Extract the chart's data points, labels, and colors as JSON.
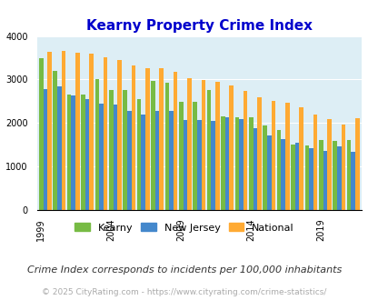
{
  "title": "Kearny Property Crime Index",
  "title_color": "#0000cc",
  "subtitle": "Crime Index corresponds to incidents per 100,000 inhabitants",
  "footer": "© 2025 CityRating.com - https://www.cityrating.com/crime-statistics/",
  "years": [
    1999,
    2000,
    2001,
    2002,
    2003,
    2004,
    2005,
    2006,
    2007,
    2008,
    2009,
    2010,
    2011,
    2012,
    2013,
    2014,
    2015,
    2016,
    2017,
    2018,
    2019,
    2020,
    2021
  ],
  "kearny": [
    3500,
    3200,
    2650,
    2650,
    3010,
    2750,
    2760,
    2560,
    2960,
    2920,
    2480,
    2480,
    2750,
    2150,
    2140,
    2130,
    1950,
    1840,
    1510,
    1490,
    1600,
    1580,
    1600
  ],
  "new_jersey": [
    2780,
    2840,
    2640,
    2540,
    2440,
    2430,
    2280,
    2190,
    2280,
    2270,
    2070,
    2060,
    2050,
    2130,
    2080,
    1890,
    1710,
    1620,
    1540,
    1430,
    1350,
    1460,
    1340
  ],
  "national": [
    3640,
    3650,
    3620,
    3590,
    3520,
    3440,
    3320,
    3260,
    3250,
    3180,
    3040,
    2980,
    2940,
    2870,
    2740,
    2600,
    2500,
    2460,
    2360,
    2200,
    2100,
    1960,
    2110
  ],
  "kearny_color": "#77bb44",
  "nj_color": "#4488cc",
  "national_color": "#ffaa33",
  "bg_color": "#ddeef5",
  "ylim": [
    0,
    4000
  ],
  "yticks": [
    0,
    1000,
    2000,
    3000,
    4000
  ],
  "xtick_years": [
    1999,
    2004,
    2009,
    2014,
    2019
  ],
  "legend_labels": [
    "Kearny",
    "New Jersey",
    "National"
  ],
  "legend_fontsize": 8,
  "subtitle_fontsize": 8,
  "footer_fontsize": 6.5,
  "title_fontsize": 11,
  "tick_fontsize": 7
}
